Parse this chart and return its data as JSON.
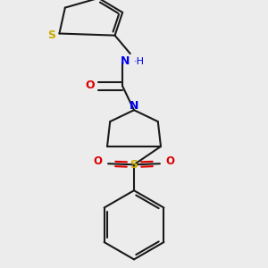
{
  "background_color": "#ececec",
  "bond_color": "#1a1a1a",
  "S_color": "#ccaa00",
  "N_color": "#0000ee",
  "O_color": "#dd0000",
  "line_width": 1.5,
  "dbo": 0.038,
  "fig_width": 3.0,
  "fig_height": 3.0,
  "xlim": [
    0.3,
    2.7
  ],
  "ylim": [
    0.1,
    2.9
  ]
}
